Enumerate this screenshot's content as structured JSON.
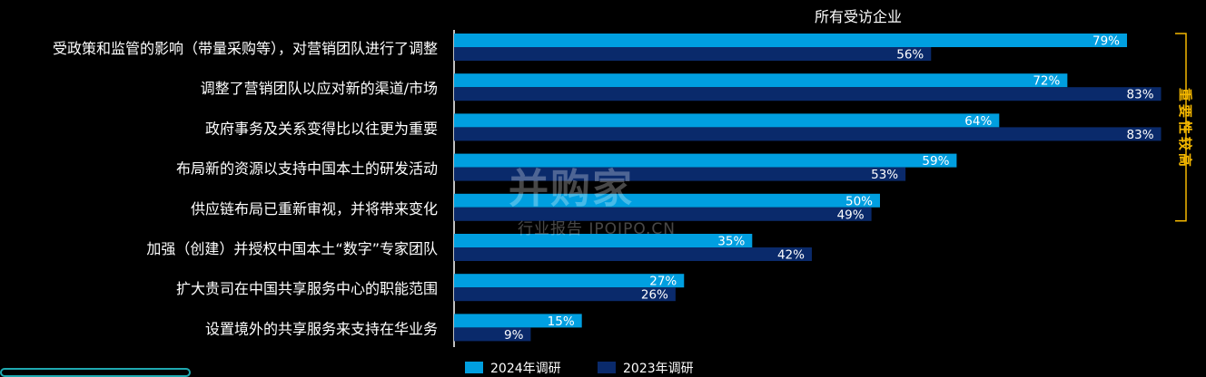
{
  "chart_data": {
    "type": "bar",
    "orientation": "horizontal",
    "title": "所有受访企业",
    "categories": [
      "受政策和监管的影响（带量采购等），对营销团队进行了调整",
      "调整了营销团队以应对新的渠道/市场",
      "政府事务及关系变得比以往更为重要",
      "布局新的资源以支持中国本土的研发活动",
      "供应链布局已重新审视，并将带来变化",
      "加强（创建）并授权中国本土“数字”专家团队",
      "扩大贵司在中国共享服务中心的职能范围",
      "设置境外的共享服务来支持在华业务"
    ],
    "series": [
      {
        "name": "2024年调研",
        "color": "#009fe0",
        "values": [
          79,
          72,
          64,
          59,
          50,
          35,
          27,
          15
        ]
      },
      {
        "name": "2023年调研",
        "color": "#0a2a6b",
        "values": [
          56,
          83,
          83,
          53,
          49,
          42,
          26,
          9
        ]
      }
    ],
    "xlim": [
      0,
      100
    ],
    "value_suffix": "%",
    "legend_position": "bottom",
    "annotation": {
      "text": "重要性较高",
      "color": "#f5b800",
      "spans_categories": [
        0,
        4
      ]
    },
    "grid": false
  },
  "watermark": {
    "main": "并购家",
    "sub": "行业报告 IPOIPO.CN"
  }
}
